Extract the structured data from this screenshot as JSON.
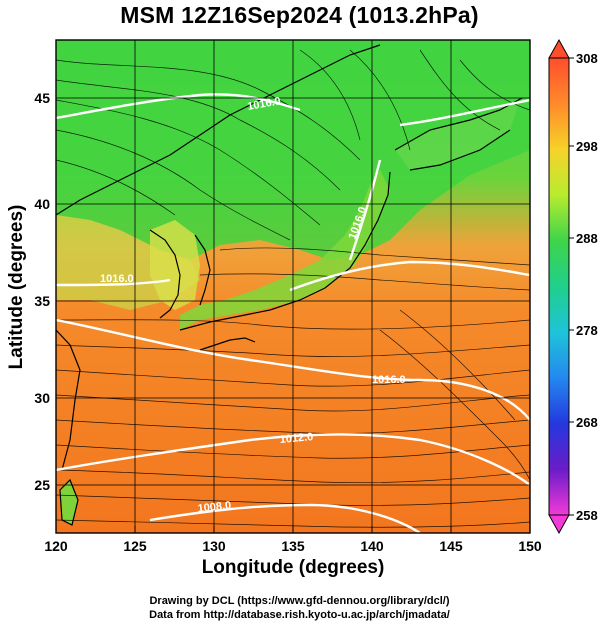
{
  "title": "MSM 12Z16Sep2024 (1013.2hPa)",
  "x_axis": {
    "label": "Longitude (degrees)",
    "ticks": [
      "120",
      "125",
      "130",
      "135",
      "140",
      "145",
      "150"
    ]
  },
  "y_axis": {
    "label": "Latitude  (degrees)",
    "ticks": [
      "45",
      "40",
      "35",
      "30",
      "25"
    ]
  },
  "colorbar": {
    "ticks": [
      "308",
      "298",
      "288",
      "278",
      "268",
      "258"
    ],
    "colors_top_to_bottom": [
      "#ff4e2e",
      "#ff9a2a",
      "#f6d22a",
      "#d8f02a",
      "#66e040",
      "#22c95a",
      "#20d6b4",
      "#22aef0",
      "#2a6cf0",
      "#2230d8",
      "#5a1cc8",
      "#b81ac8",
      "#f23ad8"
    ]
  },
  "contour_labels": [
    "1016.0",
    "1016.0",
    "1016.0",
    "1016.0",
    "1012.0",
    "1008.0"
  ],
  "map_colors": {
    "warm": "#f57a1e",
    "green": "#3fd33f",
    "yellow": "#c8e24a"
  },
  "footer": {
    "line1": "Drawing by DCL (https://www.gfd-dennou.org/library/dcl/)",
    "line2": "Data from http://database.rish.kyoto-u.ac.jp/arch/jmadata/"
  }
}
